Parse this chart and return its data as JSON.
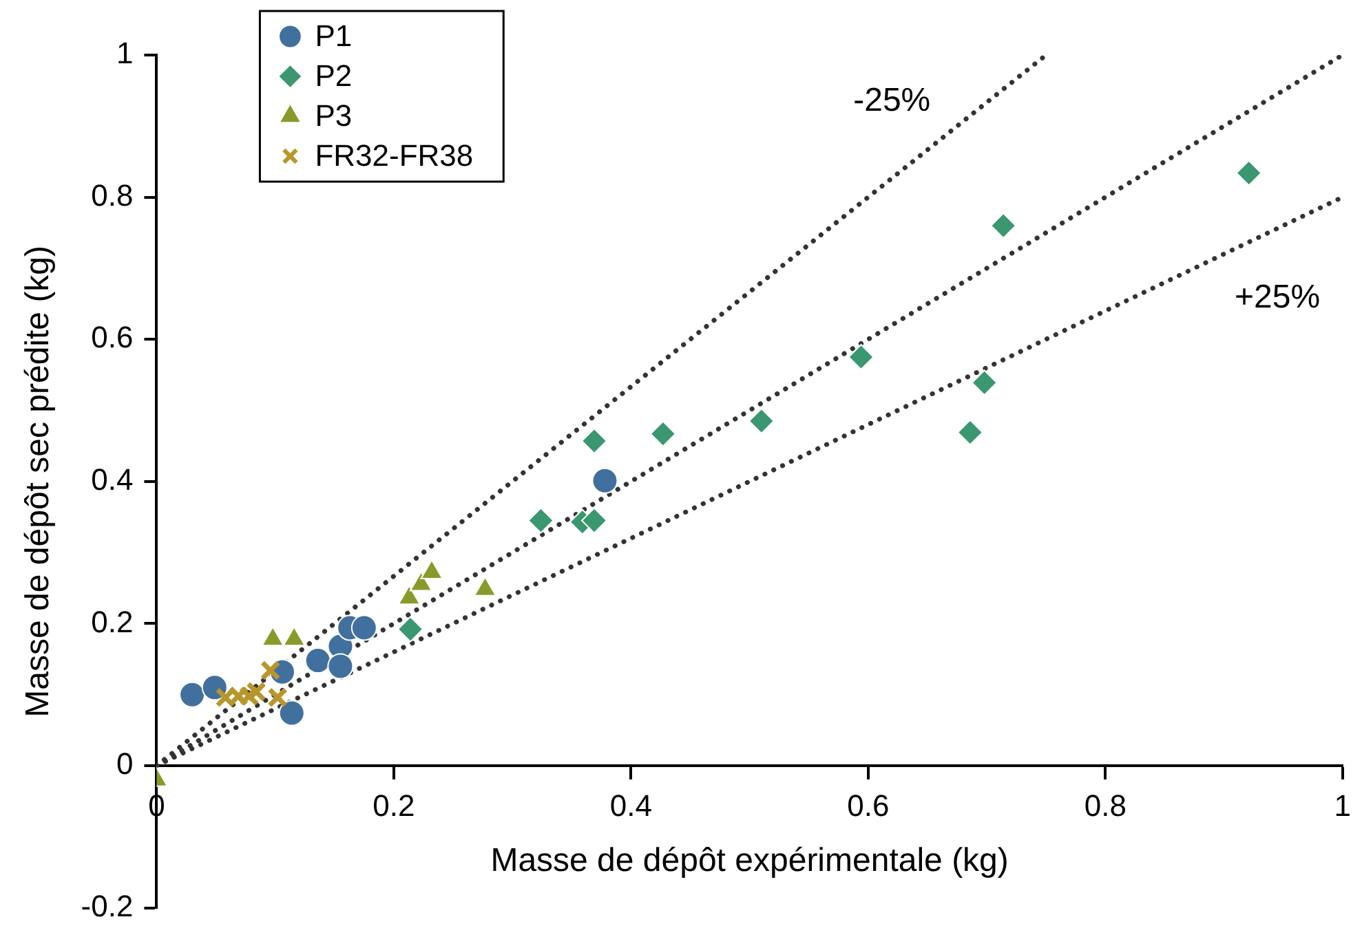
{
  "chart_data": {
    "type": "scatter",
    "xlabel": "Masse de dépôt expérimentale (kg)",
    "ylabel": "Masse de dépôt sec prédite (kg)",
    "xlim": [
      0,
      1
    ],
    "xticks": [
      0,
      0.2,
      0.4,
      0.6,
      0.8,
      1
    ],
    "ylim": [
      -0.2,
      1
    ],
    "yticks": [
      -0.2,
      0,
      0.2,
      0.4,
      0.6,
      0.8,
      1
    ],
    "grid": false,
    "legend": "top left",
    "annotations": [
      "-25%",
      "+25%"
    ],
    "series": [
      {
        "name": "P1",
        "marker": "circle",
        "color": "#41709f",
        "x": [
          0.03,
          0.049,
          0.106,
          0.114,
          0.136,
          0.155,
          0.155,
          0.163,
          0.175,
          0.378
        ],
        "values": [
          0.1,
          0.11,
          0.132,
          0.074,
          0.148,
          0.168,
          0.14,
          0.194,
          0.194,
          0.401
        ]
      },
      {
        "name": "P2",
        "marker": "diamond",
        "color": "#3a9770",
        "x": [
          0.214,
          0.324,
          0.359,
          0.369,
          0.369,
          0.427,
          0.51,
          0.594,
          0.714,
          0.921,
          0.698,
          0.686
        ],
        "values": [
          0.192,
          0.345,
          0.343,
          0.345,
          0.457,
          0.467,
          0.485,
          0.575,
          0.76,
          0.834,
          0.539,
          0.469
        ]
      },
      {
        "name": "P3",
        "marker": "triangle",
        "color": "#8a9a2a",
        "x": [
          0,
          0.098,
          0.116,
          0.213,
          0.223,
          0.232,
          0.277
        ],
        "values": [
          -0.02,
          0.178,
          0.178,
          0.236,
          0.255,
          0.272,
          0.248
        ]
      },
      {
        "name": "FR32-FR38",
        "marker": "cross",
        "color": "#b8962a",
        "x": [
          0.058,
          0.069,
          0.078,
          0.084,
          0.096,
          0.102
        ],
        "values": [
          0.096,
          0.098,
          0.098,
          0.104,
          0.134,
          0.096
        ]
      },
      {
        "type": "line",
        "line_style": "dotted",
        "marker": "none",
        "color": "#333333",
        "x": [
          0,
          0.75
        ],
        "values": [
          0,
          1
        ]
      },
      {
        "type": "line",
        "line_style": "dotted",
        "marker": "none",
        "color": "#333333",
        "x": [
          0,
          1
        ],
        "values": [
          0,
          1
        ]
      },
      {
        "type": "line",
        "line_style": "dotted",
        "marker": "none",
        "color": "#333333",
        "x": [
          0,
          1
        ],
        "values": [
          0,
          0.8
        ]
      }
    ]
  }
}
